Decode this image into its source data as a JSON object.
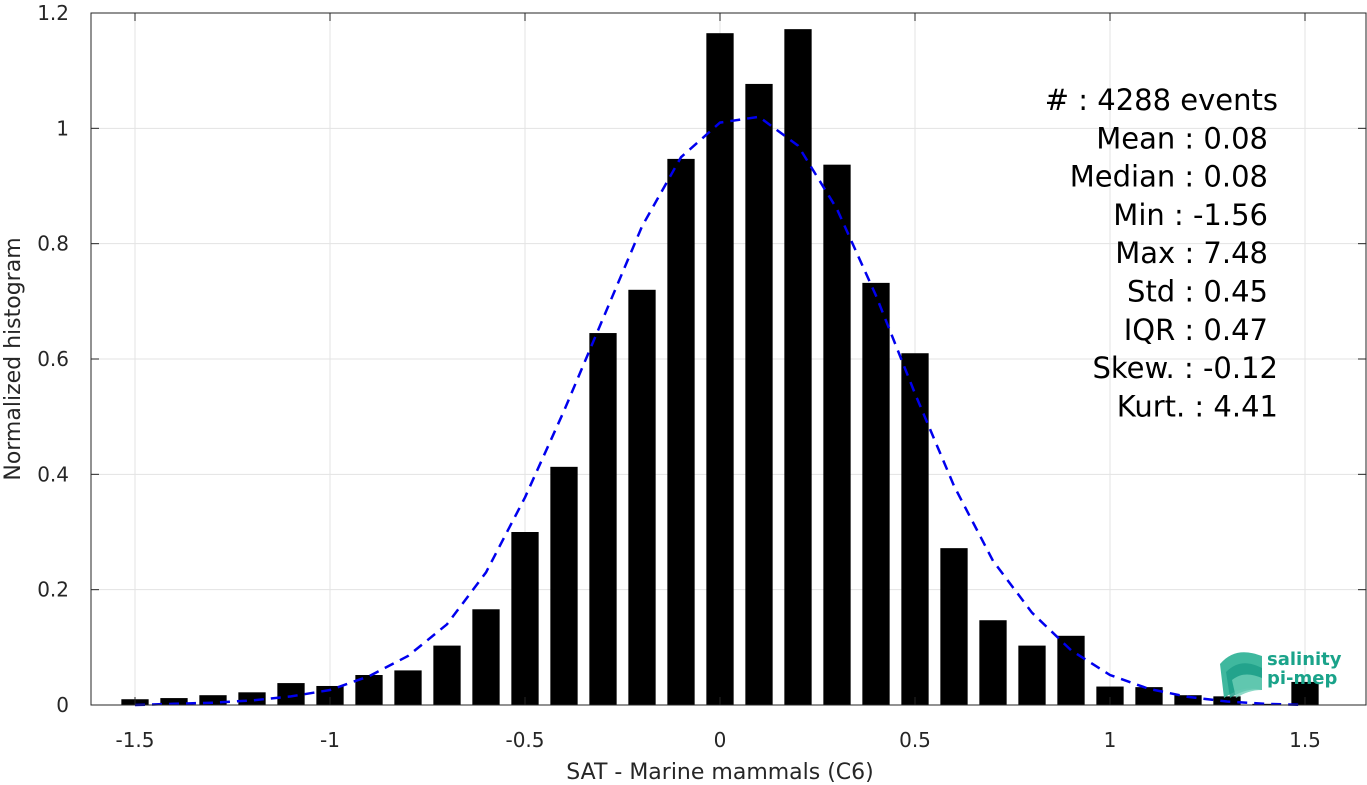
{
  "chart_data": {
    "type": "bar",
    "xlabel": "SAT - Marine mammals (C6)",
    "ylabel": "Normalized histogram",
    "xlim": [
      -1.6,
      1.6
    ],
    "ylim": [
      0,
      1.2
    ],
    "xticks": [
      -1.5,
      -1,
      -0.5,
      0,
      0.5,
      1,
      1.5
    ],
    "xtick_labels": [
      "-1.5",
      "-1",
      "-0.5",
      "0",
      "0.5",
      "1",
      "1.5"
    ],
    "yticks": [
      0,
      0.2,
      0.4,
      0.6,
      0.8,
      1,
      1.2
    ],
    "ytick_labels": [
      "0",
      "0.2",
      "0.4",
      "0.6",
      "0.8",
      "1",
      "1.2"
    ],
    "grid": true,
    "bar_color": "#000000",
    "bins": {
      "centers": [
        -1.5,
        -1.4,
        -1.3,
        -1.2,
        -1.1,
        -1.0,
        -0.9,
        -0.8,
        -0.7,
        -0.6,
        -0.5,
        -0.4,
        -0.3,
        -0.2,
        -0.1,
        0.0,
        0.1,
        0.2,
        0.3,
        0.4,
        0.5,
        0.6,
        0.7,
        0.8,
        0.9,
        1.0,
        1.1,
        1.2,
        1.3,
        1.4,
        1.5
      ],
      "values": [
        0.01,
        0.012,
        0.017,
        0.022,
        0.038,
        0.033,
        0.052,
        0.06,
        0.103,
        0.166,
        0.3,
        0.413,
        0.645,
        0.72,
        0.947,
        1.165,
        1.077,
        1.172,
        0.937,
        0.732,
        0.61,
        0.272,
        0.147,
        0.103,
        0.12,
        0.032,
        0.031,
        0.017,
        0.015,
        0.002,
        0.04
      ]
    },
    "fit_curve": {
      "style": "dashed",
      "color": "#0000ee",
      "x": [
        -1.5,
        -1.4,
        -1.3,
        -1.2,
        -1.1,
        -1.0,
        -0.9,
        -0.8,
        -0.7,
        -0.6,
        -0.5,
        -0.4,
        -0.3,
        -0.2,
        -0.1,
        0.0,
        0.1,
        0.2,
        0.3,
        0.4,
        0.5,
        0.6,
        0.7,
        0.8,
        0.9,
        1.0,
        1.1,
        1.2,
        1.3,
        1.4,
        1.5
      ],
      "y": [
        0.0,
        0.002,
        0.004,
        0.008,
        0.015,
        0.026,
        0.05,
        0.085,
        0.14,
        0.23,
        0.36,
        0.51,
        0.67,
        0.83,
        0.95,
        1.01,
        1.02,
        0.97,
        0.86,
        0.71,
        0.54,
        0.38,
        0.25,
        0.16,
        0.095,
        0.052,
        0.028,
        0.014,
        0.006,
        0.002,
        0.0
      ]
    }
  },
  "stats": [
    {
      "label": "#  ",
      "value": "4288 events"
    },
    {
      "label": "Mean",
      "value": "0.08"
    },
    {
      "label": "Median",
      "value": "0.08"
    },
    {
      "label": "Min",
      "value": "-1.56"
    },
    {
      "label": "Max",
      "value": "7.48"
    },
    {
      "label": "Std",
      "value": "0.45"
    },
    {
      "label": "IQR",
      "value": "0.47"
    },
    {
      "label": "Skew.",
      "value": "-0.12"
    },
    {
      "label": "Kurt.",
      "value": "4.41"
    }
  ],
  "logo": {
    "line1": "salinity",
    "line2": "pi-mep",
    "color": "#1aa38a"
  }
}
